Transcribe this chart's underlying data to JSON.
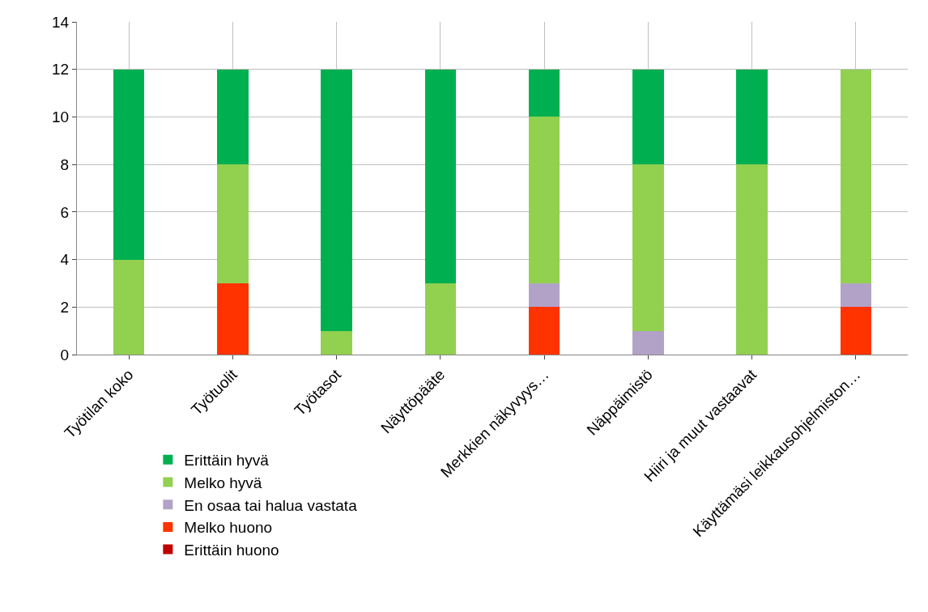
{
  "chart_data": {
    "type": "bar",
    "stacked": true,
    "categories": [
      "Työtilan koko",
      "Työtuolit",
      "Työtasot",
      "Näyttöpääte",
      "Merkkien näkyvyys…",
      "Näppäimistö",
      "Hiiri ja muut vastaavat",
      "Käyttämäsi leikkausohjelmiston…"
    ],
    "series": [
      {
        "name": "Erittäin huono",
        "color": "#c00000",
        "values": [
          0,
          0,
          0,
          0,
          0,
          0,
          0,
          0
        ]
      },
      {
        "name": "Melko huono",
        "color": "#ff3300",
        "values": [
          0,
          3,
          0,
          0,
          2,
          0,
          0,
          2
        ]
      },
      {
        "name": "En osaa tai halua vastata",
        "color": "#b3a2c7",
        "values": [
          0,
          0,
          0,
          0,
          1,
          1,
          0,
          1
        ]
      },
      {
        "name": "Melko hyvä",
        "color": "#92d050",
        "values": [
          4,
          5,
          1,
          3,
          7,
          7,
          8,
          9
        ]
      },
      {
        "name": "Erittäin hyvä",
        "color": "#00b050",
        "values": [
          8,
          4,
          11,
          9,
          2,
          4,
          4,
          0
        ]
      }
    ],
    "ylim": [
      0,
      14
    ],
    "yticks": [
      0,
      2,
      4,
      6,
      8,
      10,
      12,
      14
    ],
    "grid": true,
    "legend": "bottom left"
  }
}
